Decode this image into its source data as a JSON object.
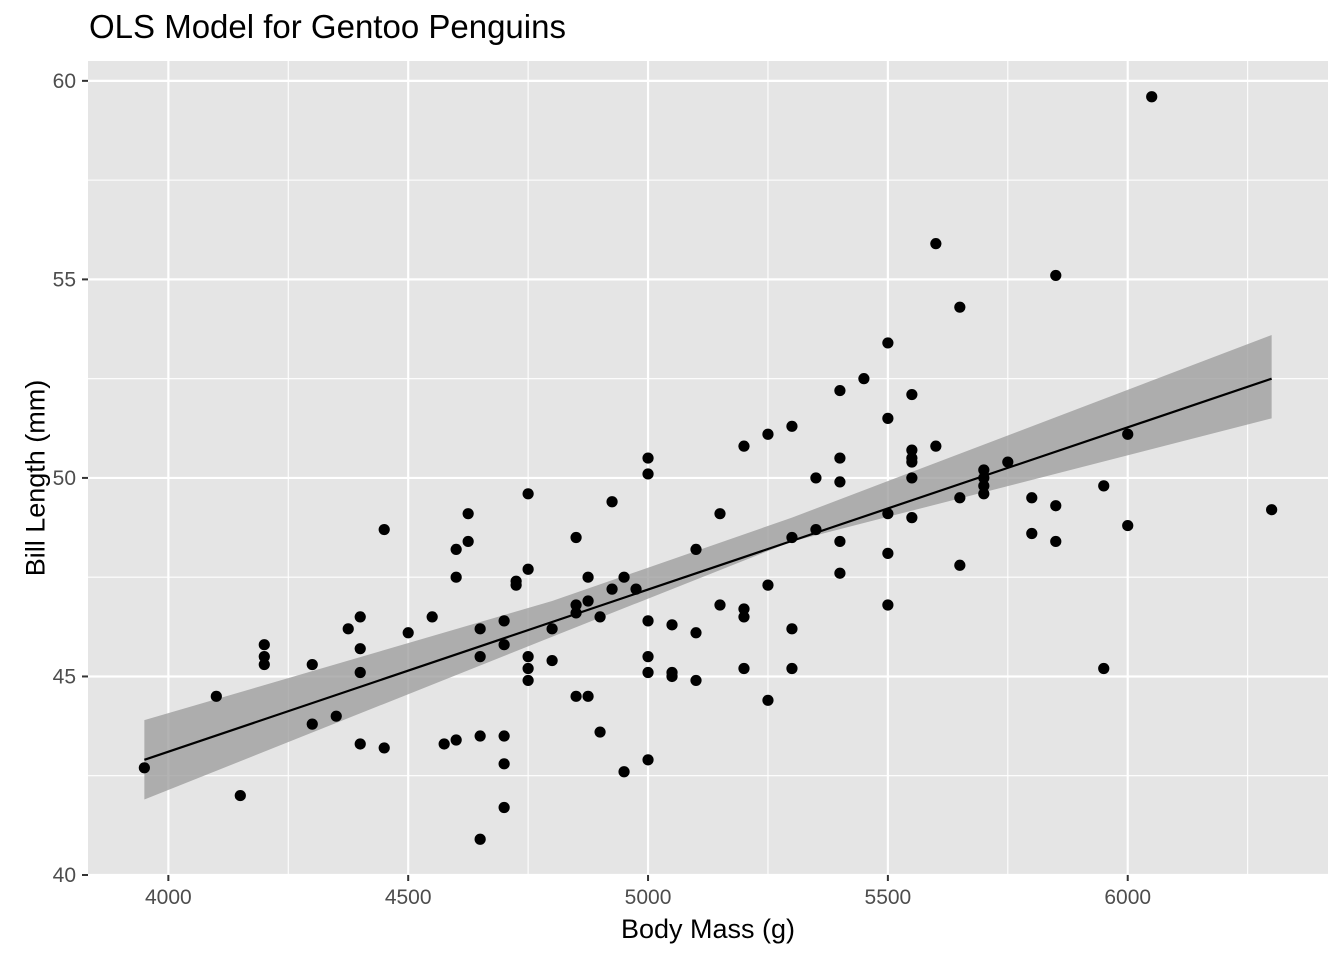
{
  "colors": {
    "panel_background": "#e5e5e5",
    "grid_major": "#ffffff",
    "points": "#000000",
    "fit_line": "#000000",
    "confidence_band": "#999999",
    "tick_label": "#4d4d4d"
  },
  "chart_data": {
    "type": "scatter",
    "title": "OLS Model for Gentoo Penguins",
    "xlabel": "Body Mass (g)",
    "ylabel": "Bill Length (mm)",
    "xlim": [
      3832.5,
      6417.5
    ],
    "ylim": [
      40,
      60.5
    ],
    "xticks": [
      4000,
      4500,
      5000,
      5500,
      6000
    ],
    "yticks": [
      40,
      45,
      50,
      55,
      60
    ],
    "grid": true,
    "legend": "none",
    "series": [
      {
        "points": [
          [
            3950,
            42.7
          ],
          [
            4100,
            44.5
          ],
          [
            4150,
            42.0
          ],
          [
            4200,
            45.8
          ],
          [
            4200,
            45.5
          ],
          [
            4200,
            45.3
          ],
          [
            4300,
            45.3
          ],
          [
            4300,
            43.8
          ],
          [
            4350,
            44.0
          ],
          [
            4375,
            46.2
          ],
          [
            4400,
            46.5
          ],
          [
            4400,
            45.7
          ],
          [
            4400,
            45.1
          ],
          [
            4400,
            43.3
          ],
          [
            4450,
            48.7
          ],
          [
            4450,
            43.2
          ],
          [
            4500,
            46.1
          ],
          [
            4550,
            46.5
          ],
          [
            4575,
            43.3
          ],
          [
            4600,
            48.2
          ],
          [
            4600,
            47.5
          ],
          [
            4600,
            43.4
          ],
          [
            4625,
            49.1
          ],
          [
            4625,
            48.4
          ],
          [
            4650,
            46.2
          ],
          [
            4650,
            45.5
          ],
          [
            4650,
            43.5
          ],
          [
            4650,
            40.9
          ],
          [
            4700,
            46.4
          ],
          [
            4700,
            45.8
          ],
          [
            4700,
            43.5
          ],
          [
            4700,
            42.8
          ],
          [
            4700,
            41.7
          ],
          [
            4725,
            47.4
          ],
          [
            4725,
            47.3
          ],
          [
            4750,
            49.6
          ],
          [
            4750,
            47.7
          ],
          [
            4750,
            45.5
          ],
          [
            4750,
            45.2
          ],
          [
            4750,
            44.9
          ],
          [
            4800,
            46.2
          ],
          [
            4800,
            45.4
          ],
          [
            4850,
            48.5
          ],
          [
            4850,
            46.8
          ],
          [
            4850,
            46.6
          ],
          [
            4850,
            44.5
          ],
          [
            4875,
            47.5
          ],
          [
            4875,
            46.9
          ],
          [
            4875,
            44.5
          ],
          [
            4900,
            46.5
          ],
          [
            4900,
            43.6
          ],
          [
            4925,
            49.4
          ],
          [
            4925,
            47.2
          ],
          [
            4950,
            47.5
          ],
          [
            4950,
            42.6
          ],
          [
            4975,
            47.2
          ],
          [
            5000,
            50.5
          ],
          [
            5000,
            50.1
          ],
          [
            5000,
            46.4
          ],
          [
            5000,
            45.5
          ],
          [
            5000,
            45.1
          ],
          [
            5000,
            42.9
          ],
          [
            5050,
            46.3
          ],
          [
            5050,
            45.1
          ],
          [
            5050,
            45.0
          ],
          [
            5100,
            48.2
          ],
          [
            5100,
            46.1
          ],
          [
            5100,
            44.9
          ],
          [
            5150,
            49.1
          ],
          [
            5150,
            46.8
          ],
          [
            5200,
            50.8
          ],
          [
            5200,
            46.7
          ],
          [
            5200,
            46.5
          ],
          [
            5200,
            45.2
          ],
          [
            5250,
            51.1
          ],
          [
            5250,
            47.3
          ],
          [
            5250,
            44.4
          ],
          [
            5300,
            51.3
          ],
          [
            5300,
            48.5
          ],
          [
            5300,
            46.2
          ],
          [
            5300,
            45.2
          ],
          [
            5350,
            50.0
          ],
          [
            5350,
            48.7
          ],
          [
            5400,
            52.2
          ],
          [
            5400,
            50.5
          ],
          [
            5400,
            49.9
          ],
          [
            5400,
            48.4
          ],
          [
            5400,
            47.6
          ],
          [
            5450,
            52.5
          ],
          [
            5500,
            53.4
          ],
          [
            5500,
            51.5
          ],
          [
            5500,
            49.1
          ],
          [
            5500,
            48.1
          ],
          [
            5500,
            46.8
          ],
          [
            5550,
            52.1
          ],
          [
            5550,
            50.7
          ],
          [
            5550,
            50.5
          ],
          [
            5550,
            50.4
          ],
          [
            5550,
            50.0
          ],
          [
            5550,
            49.0
          ],
          [
            5600,
            55.9
          ],
          [
            5600,
            50.8
          ],
          [
            5650,
            54.3
          ],
          [
            5650,
            49.5
          ],
          [
            5650,
            47.8
          ],
          [
            5700,
            50.2
          ],
          [
            5700,
            50.0
          ],
          [
            5700,
            49.8
          ],
          [
            5700,
            49.6
          ],
          [
            5750,
            50.4
          ],
          [
            5800,
            49.5
          ],
          [
            5800,
            48.6
          ],
          [
            5850,
            55.1
          ],
          [
            5850,
            49.3
          ],
          [
            5850,
            48.4
          ],
          [
            5950,
            49.8
          ],
          [
            5950,
            45.2
          ],
          [
            6000,
            51.1
          ],
          [
            6000,
            48.8
          ],
          [
            6050,
            59.6
          ],
          [
            6300,
            49.2
          ]
        ]
      }
    ],
    "fit_line": {
      "x": [
        3950,
        6300
      ],
      "y": [
        42.9,
        52.5
      ]
    },
    "confidence_band": {
      "x": [
        3950,
        4800,
        5300,
        6300
      ],
      "lower": [
        41.9,
        46.0,
        48.4,
        51.5
      ],
      "upper": [
        43.9,
        46.9,
        49.0,
        53.6
      ]
    }
  }
}
